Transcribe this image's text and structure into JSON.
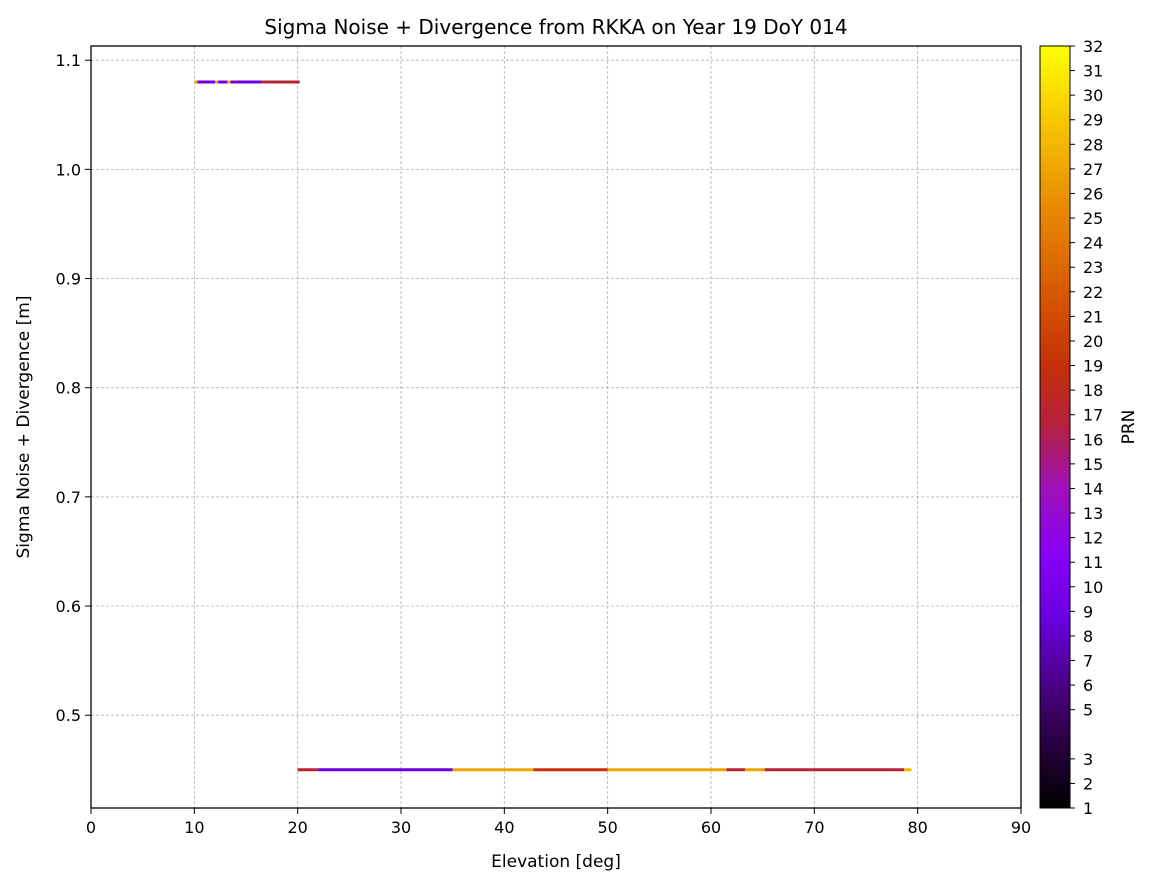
{
  "chart_data": {
    "type": "scatter",
    "title": "Sigma Noise + Divergence from RKKA on Year 19 DoY 014",
    "xlabel": "Elevation [deg]",
    "ylabel": "Sigma Noise + Divergence [m]",
    "xlim": [
      0,
      90
    ],
    "ylim": [
      0.415,
      1.113
    ],
    "xticks": [
      "0",
      "10",
      "20",
      "30",
      "40",
      "50",
      "60",
      "70",
      "80",
      "90"
    ],
    "yticks": [
      "0.5",
      "0.6",
      "0.7",
      "0.8",
      "0.9",
      "1.0",
      "1.1"
    ],
    "xtick_values": [
      0,
      10,
      20,
      30,
      40,
      50,
      60,
      70,
      80,
      90
    ],
    "ytick_values": [
      0.5,
      0.6,
      0.7,
      0.8,
      0.9,
      1.0,
      1.1
    ],
    "grid": true,
    "colorbar": {
      "label": "PRN",
      "colormap": "gnuplot",
      "range": [
        1,
        32
      ],
      "ticks": [
        "1",
        "2",
        "3",
        "5",
        "6",
        "7",
        "8",
        "9",
        "10",
        "11",
        "12",
        "13",
        "14",
        "15",
        "16",
        "17",
        "18",
        "19",
        "20",
        "21",
        "22",
        "23",
        "24",
        "25",
        "26",
        "27",
        "28",
        "29",
        "30",
        "31",
        "32"
      ],
      "tick_values": [
        1,
        2,
        3,
        5,
        6,
        7,
        8,
        9,
        10,
        11,
        12,
        13,
        14,
        15,
        16,
        17,
        18,
        19,
        20,
        21,
        22,
        23,
        24,
        25,
        26,
        27,
        28,
        29,
        30,
        31,
        32
      ]
    },
    "series": [
      {
        "y": 1.08,
        "segments": [
          {
            "x0": 10.0,
            "x1": 10.3,
            "prn": 27
          },
          {
            "x0": 10.3,
            "x1": 12.0,
            "prn": 9
          },
          {
            "x0": 12.0,
            "x1": 12.3,
            "prn": 27
          },
          {
            "x0": 12.3,
            "x1": 13.2,
            "prn": 9
          },
          {
            "x0": 13.2,
            "x1": 13.5,
            "prn": 27
          },
          {
            "x0": 13.5,
            "x1": 14.0,
            "prn": 9
          },
          {
            "x0": 14.0,
            "x1": 16.5,
            "prn": 9
          },
          {
            "x0": 16.5,
            "x1": 20.2,
            "prn": 17
          }
        ]
      },
      {
        "y": 0.45,
        "segments": [
          {
            "x0": 20.0,
            "x1": 22.0,
            "prn": 17
          },
          {
            "x0": 22.0,
            "x1": 35.0,
            "prn": 9
          },
          {
            "x0": 35.0,
            "x1": 42.8,
            "prn": 27
          },
          {
            "x0": 42.8,
            "x1": 50.0,
            "prn": 19
          },
          {
            "x0": 50.0,
            "x1": 61.5,
            "prn": 27
          },
          {
            "x0": 61.5,
            "x1": 63.3,
            "prn": 17
          },
          {
            "x0": 63.3,
            "x1": 65.2,
            "prn": 27
          },
          {
            "x0": 65.2,
            "x1": 78.7,
            "prn": 17
          },
          {
            "x0": 78.7,
            "x1": 79.4,
            "prn": 28
          }
        ]
      }
    ]
  }
}
